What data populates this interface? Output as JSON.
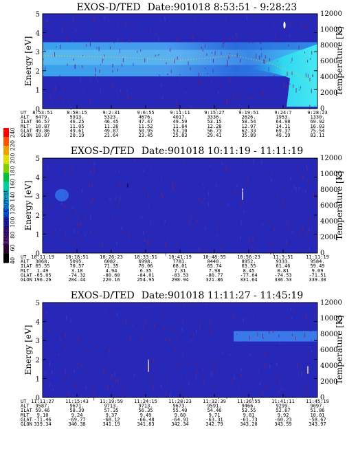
{
  "chart_data": [
    {
      "type": "heatmap",
      "title": "EXOS-D/TED",
      "date_range": "Date:901018   8:53:51 - 9:28:23",
      "ylabel": "Energy [eV]",
      "y2label": "Temperature [K]",
      "ylim": [
        0,
        5
      ],
      "y2lim": [
        0,
        12000
      ],
      "yticks": [
        "0",
        "1",
        "2",
        "3",
        "4",
        "5"
      ],
      "y2ticks": [
        "0",
        "2000",
        "4000",
        "6000",
        "8000",
        "10000",
        "12000"
      ],
      "annotation_rows": [
        {
          "label": "UT",
          "values": [
            "8:53:51",
            "8:58:15",
            "9:2:31",
            "9:6:55",
            "9:11:11",
            "9:15:27",
            "9:19:51",
            "9:24:7",
            "9:28:23"
          ]
        },
        {
          "label": "ALT",
          "values": [
            "6479.",
            "5913.",
            "5323.",
            "4676.",
            "4017.",
            "3336.",
            "2626.",
            "1953.",
            "1330."
          ]
        },
        {
          "label": "ILAT",
          "values": [
            "46.57",
            "46.25",
            "46.45",
            "47.47",
            "49.59",
            "53.15",
            "58.54",
            "64.98",
            "69.92"
          ]
        },
        {
          "label": "MLT",
          "values": [
            "10.87",
            "11.05",
            "11.26",
            "11.52",
            "11.84",
            "12.28",
            "12.97",
            "14.11",
            "16.03"
          ]
        },
        {
          "label": "GLAT",
          "values": [
            "49.86",
            "49.61",
            "49.87",
            "50.95",
            "53.10",
            "56.73",
            "62.33",
            "69.37",
            "75.54"
          ]
        },
        {
          "label": "GLON",
          "values": [
            "18.87",
            "20.19",
            "21.64",
            "23.45",
            "25.83",
            "29.41",
            "35.89",
            "49.19",
            "83.11"
          ]
        }
      ]
    },
    {
      "type": "heatmap",
      "title": "EXOS-D/TED",
      "date_range": "Date:901018   10:11:19 - 11:11:19",
      "ylabel": "Energy [eV]",
      "y2label": "Temperature [K]",
      "ylim": [
        0,
        5
      ],
      "y2lim": [
        0,
        12000
      ],
      "yticks": [
        "0",
        "1",
        "2",
        "3",
        "4",
        "5"
      ],
      "y2ticks": [
        "0",
        "2000",
        "4000",
        "6000",
        "8000",
        "10000",
        "12000"
      ],
      "annotation_rows": [
        {
          "label": "UT",
          "values": [
            "10:11:19",
            "10:18:51",
            "10:26:23",
            "10:33:51",
            "10:41:19",
            "10:48:55",
            "10:56:23",
            "11:3:51",
            "11:11:19"
          ]
        },
        {
          "label": "ALT",
          "values": [
            "3868.",
            "5095.",
            "6082.",
            "6998.",
            "7781.",
            "8440.",
            "8952.",
            "9333.",
            "9584."
          ]
        },
        {
          "label": "ILAT",
          "values": [
            "65.55",
            "70.57",
            "71.35",
            "70.06",
            "68.01",
            "65.74",
            "63.55",
            "61.46",
            "59.49"
          ]
        },
        {
          "label": "MLT",
          "values": [
            "1.49",
            "3.18",
            "4.94",
            "6.35",
            "7.31",
            "7.98",
            "8.45",
            "8.81",
            "9.09"
          ]
        },
        {
          "label": "GLAT",
          "values": [
            "-65.05",
            "-74.32",
            "-80.60",
            "-84.01",
            "-83.53",
            "-80.77",
            "-77.64",
            "-74.53",
            "-71.51"
          ]
        },
        {
          "label": "GLON",
          "values": [
            "196.26",
            "204.44",
            "220.16",
            "254.95",
            "298.94",
            "321.86",
            "331.64",
            "336.53",
            "339.30"
          ]
        }
      ]
    },
    {
      "type": "heatmap",
      "title": "EXOS-D/TED",
      "date_range": "Date:901018   11:11:27 - 11:45:19",
      "ylabel": "Energy [eV]",
      "y2label": "Temperature [K]",
      "ylim": [
        0,
        5
      ],
      "y2lim": [
        0,
        12000
      ],
      "yticks": [
        "0",
        "1",
        "2",
        "3",
        "4",
        "5"
      ],
      "y2ticks": [
        "0",
        "2000",
        "4000",
        "6000",
        "8000",
        "10000",
        "12000"
      ],
      "annotation_rows": [
        {
          "label": "UT",
          "values": [
            "11:11:27",
            "11:15:43",
            "11:19:59",
            "11:24:15",
            "11:28:23",
            "11:32:39",
            "11:36:55",
            "11:41:11",
            "11:45:19"
          ]
        },
        {
          "label": "ALT",
          "values": [
            "9587.",
            "9671.",
            "9713.",
            "9713.",
            "9673.",
            "9591.",
            "9466.",
            "9299.",
            "9097."
          ]
        },
        {
          "label": "ILAT",
          "values": [
            "59.46",
            "58.39",
            "57.35",
            "56.35",
            "55.40",
            "54.46",
            "53.55",
            "52.67",
            "51.86"
          ]
        },
        {
          "label": "MLT",
          "values": [
            "9.10",
            "9.24",
            "9.37",
            "9.49",
            "9.60",
            "9.71",
            "9.81",
            "9.92",
            "10.01"
          ]
        },
        {
          "label": "GLAT",
          "values": [
            "-71.46",
            "-69.77",
            "-68.12",
            "-66.48",
            "-64.91",
            "-63.31",
            "-61.73",
            "-60.23",
            "-58.67"
          ]
        },
        {
          "label": "GLON",
          "values": [
            "339.34",
            "340.38",
            "341.19",
            "341.83",
            "342.34",
            "342.79",
            "343.20",
            "343.59",
            "343.97"
          ]
        }
      ]
    }
  ],
  "colorbar": {
    "label": "Second Harmonic Current",
    "ticks": [
      "40",
      "60",
      "80",
      "100",
      "120",
      "140",
      "160",
      "180",
      "200",
      "220",
      "240"
    ],
    "colors": [
      "#000000",
      "#3a0a40",
      "#5a1a78",
      "#401090",
      "#2020c0",
      "#0050e0",
      "#0090f0",
      "#00c0e0",
      "#00d0a0",
      "#00c040",
      "#80d000",
      "#e0e000",
      "#f0a000",
      "#ff5000",
      "#ff0000"
    ]
  }
}
